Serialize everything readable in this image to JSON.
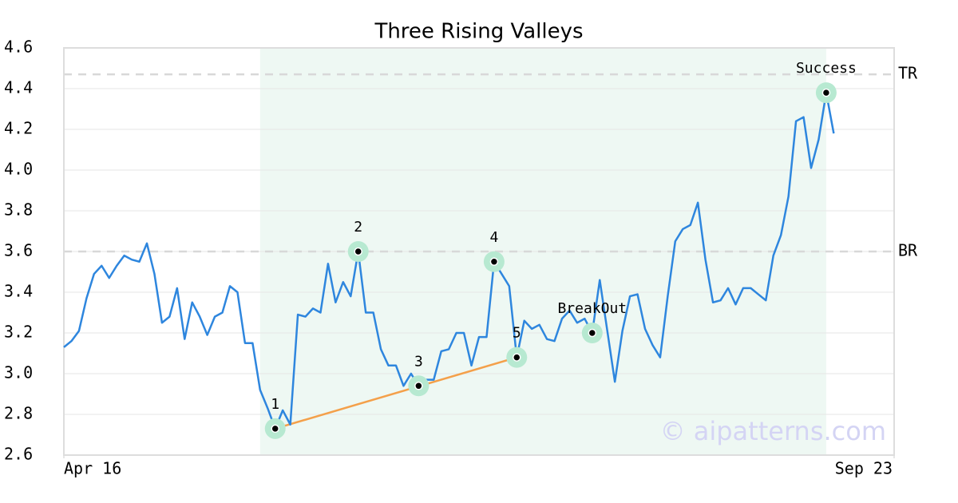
{
  "chart_data": {
    "type": "line",
    "title": "Three Rising Valleys",
    "x": [
      0,
      1,
      2,
      3,
      4,
      5,
      6,
      7,
      8,
      9,
      10,
      11,
      12,
      13,
      14,
      15,
      16,
      17,
      18,
      19,
      20,
      21,
      22,
      23,
      24,
      25,
      26,
      27,
      28,
      29,
      30,
      31,
      32,
      33,
      34,
      35,
      36,
      37,
      38,
      39,
      40,
      41,
      42,
      43,
      44,
      45,
      46,
      47,
      48,
      49,
      50,
      51,
      52,
      53,
      54,
      55,
      56,
      57,
      58,
      59,
      60,
      61,
      62,
      63,
      64,
      65,
      66,
      67,
      68,
      69,
      70,
      71,
      72,
      73,
      74,
      75,
      76,
      77,
      78,
      79,
      80,
      81,
      82,
      83,
      84,
      85,
      86,
      87,
      88,
      89,
      90,
      91,
      92,
      93,
      94,
      95,
      96,
      97,
      98,
      99,
      100,
      101,
      102
    ],
    "series": [
      {
        "color": "#2e86de",
        "values": [
          3.13,
          3.16,
          3.21,
          3.37,
          3.49,
          3.53,
          3.47,
          3.53,
          3.58,
          3.56,
          3.55,
          3.64,
          3.49,
          3.25,
          3.28,
          3.42,
          3.17,
          3.35,
          3.28,
          3.19,
          3.28,
          3.3,
          3.43,
          3.4,
          3.15,
          3.15,
          2.92,
          2.83,
          2.73,
          2.82,
          2.75,
          3.29,
          3.28,
          3.32,
          3.3,
          3.54,
          3.35,
          3.45,
          3.38,
          3.6,
          3.3,
          3.3,
          3.12,
          3.04,
          3.04,
          2.94,
          3.0,
          2.94,
          2.97,
          2.97,
          3.11,
          3.12,
          3.2,
          3.2,
          3.04,
          3.18,
          3.18,
          3.55,
          3.49,
          3.43,
          3.08,
          3.26,
          3.22,
          3.24,
          3.17,
          3.16,
          3.27,
          3.31,
          3.25,
          3.27,
          3.2,
          3.46,
          3.21,
          2.96,
          3.21,
          3.38,
          3.39,
          3.22,
          3.14,
          3.08,
          3.38,
          3.65,
          3.71,
          3.73,
          3.84,
          3.56,
          3.35,
          3.36,
          3.42,
          3.34,
          3.42,
          3.42,
          3.39,
          3.36,
          3.58,
          3.68,
          3.87,
          4.24,
          4.26,
          4.01,
          4.15,
          4.38,
          4.18
        ]
      }
    ],
    "xlim": [
      0,
      110
    ],
    "xticks": [
      {
        "value": 0,
        "label": "Apr 16"
      },
      {
        "value": 110,
        "label": "Sep 23"
      }
    ],
    "ylim": [
      2.6,
      4.6
    ],
    "yticks": [
      2.6,
      2.8,
      {
        "value": 3,
        "label": "3.0"
      },
      3.2,
      3.4,
      3.6,
      3.8,
      {
        "value": 4,
        "label": "4.0"
      },
      4.2,
      4.4,
      4.6
    ],
    "grid": true,
    "highlight": {
      "x": [
        26,
        101
      ],
      "color": "#eef8f3"
    },
    "levels": [
      {
        "label": "TR",
        "value": 4.47
      },
      {
        "label": "BR",
        "value": 3.6
      }
    ],
    "trendline": {
      "x": [
        28,
        60
      ],
      "y": [
        2.73,
        3.08
      ],
      "color": "#f4a04a"
    },
    "annotations": [
      {
        "label": "1",
        "x": 28,
        "y": 2.73
      },
      {
        "label": "2",
        "x": 39,
        "y": 3.6
      },
      {
        "label": "3",
        "x": 47,
        "y": 2.94
      },
      {
        "label": "4",
        "x": 57,
        "y": 3.55
      },
      {
        "label": "5",
        "x": 60,
        "y": 3.08
      },
      {
        "label": "BreakOut",
        "x": 70,
        "y": 3.2
      },
      {
        "label": "Success",
        "x": 101,
        "y": 4.38
      }
    ],
    "watermark": "© aipatterns.com"
  }
}
